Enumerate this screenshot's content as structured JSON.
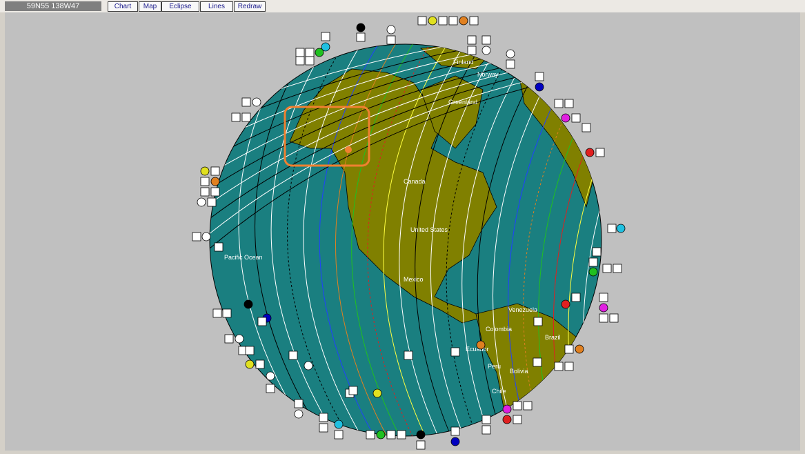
{
  "toolbar": {
    "coordinates": "59N55 138W47",
    "buttons": [
      "Chart",
      "Map",
      "Eclipse",
      "Lines",
      "Redraw"
    ]
  },
  "map": {
    "labels": [
      "Finland",
      "Norway",
      "Greenland",
      "Canada",
      "United States",
      "Mexico",
      "Pacific Ocean",
      "Venezuela",
      "Colombia",
      "Brazil",
      "Ecuador",
      "Peru",
      "Bolivia",
      "Chile"
    ]
  }
}
